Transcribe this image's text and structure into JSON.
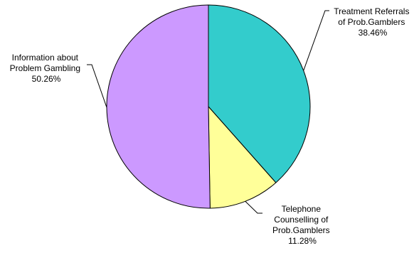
{
  "chart_data": {
    "type": "pie",
    "title": "",
    "slices": [
      {
        "name_lines": [
          "Treatment Referrals",
          "of Prob.Gamblers"
        ],
        "value_label": "38.46%",
        "value": 38.46,
        "color": "#33CCCC"
      },
      {
        "name_lines": [
          "Telephone",
          "Counselling of",
          "Prob.Gamblers"
        ],
        "value_label": "11.28%",
        "value": 11.28,
        "color": "#FFFF99"
      },
      {
        "name_lines": [
          "Information about",
          "Problem Gambling"
        ],
        "value_label": "50.26%",
        "value": 50.26,
        "color": "#CC99FF"
      }
    ],
    "start_angle_deg": 0,
    "direction": "clockwise",
    "legend": "none",
    "labels": "outside with leader lines"
  }
}
